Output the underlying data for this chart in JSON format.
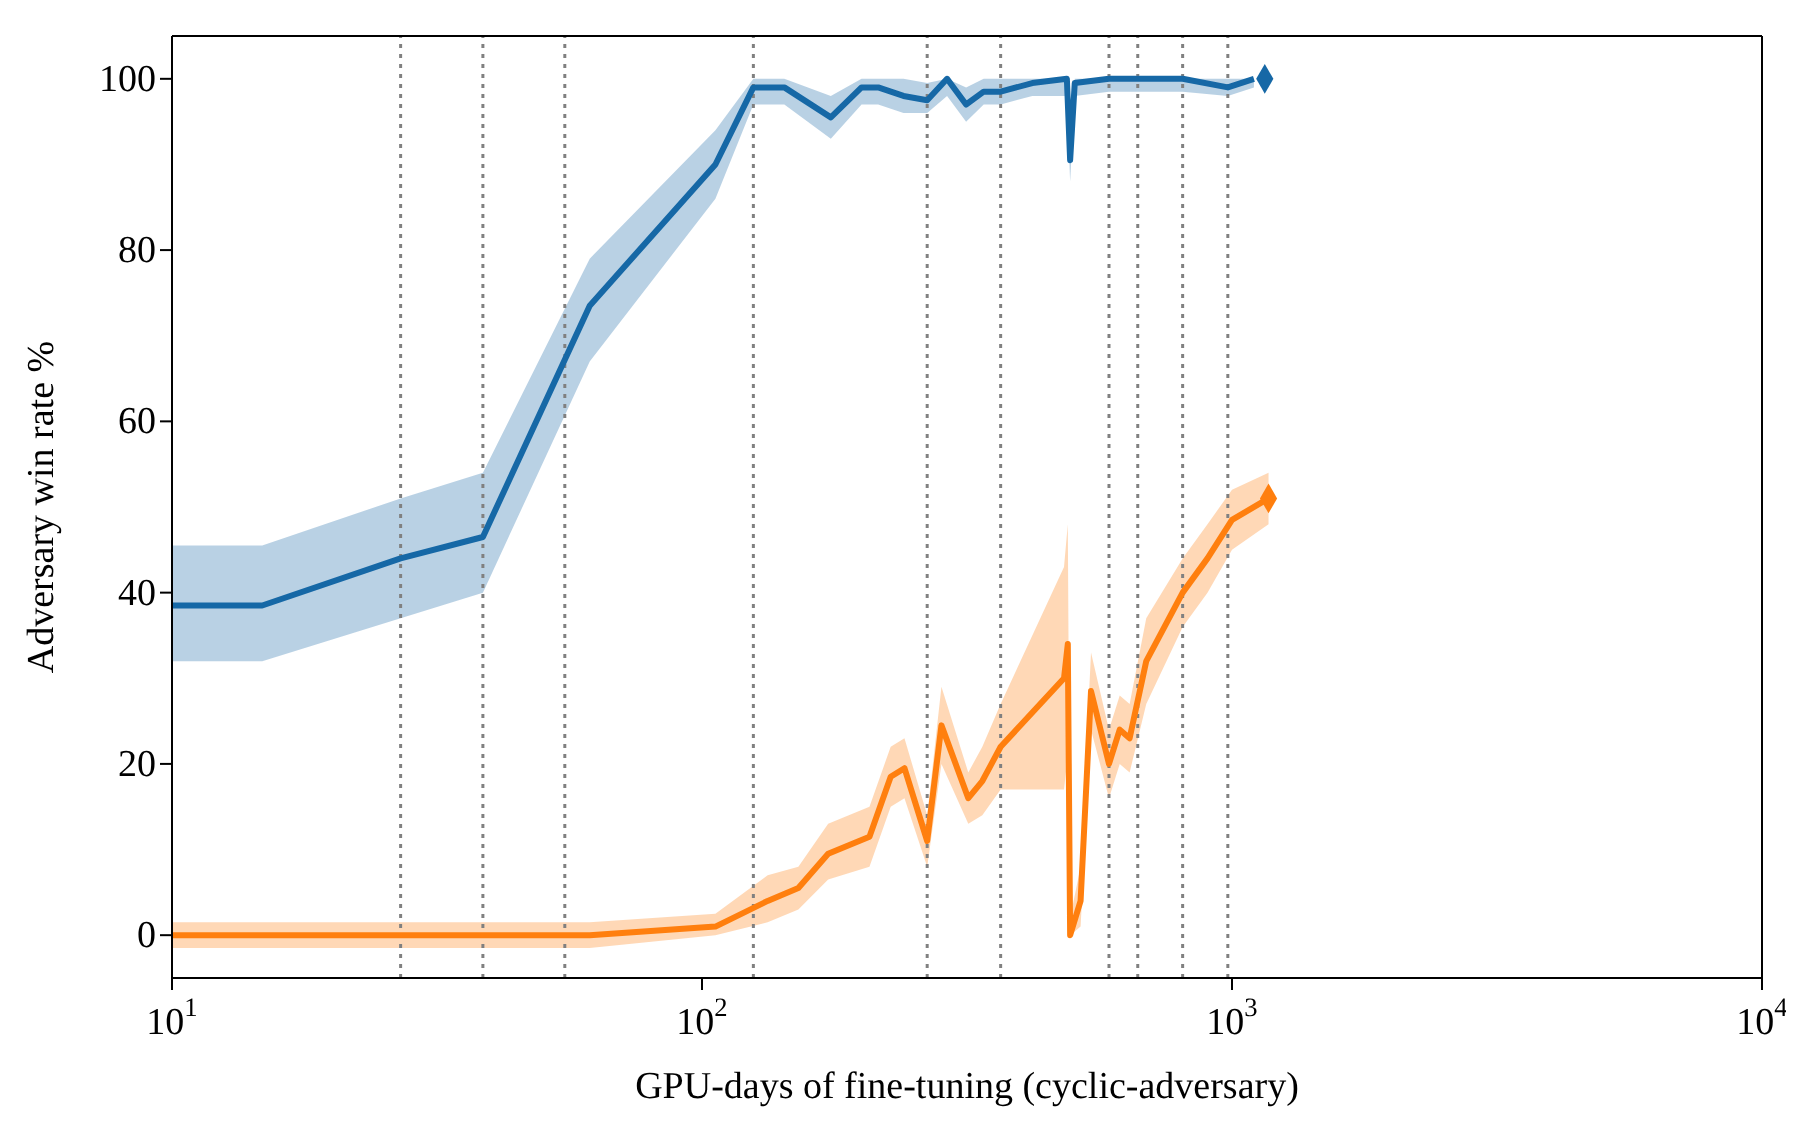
{
  "chart_data": {
    "type": "line",
    "xlabel": "GPU-days of fine-tuning (cyclic-adversary)",
    "ylabel": "Adversary win rate %",
    "log": "x",
    "xlim": [
      10,
      10000
    ],
    "xticks": [
      {
        "value": 10,
        "label": "10$^{1}$"
      },
      {
        "value": 100,
        "label": "10$^{2}$"
      },
      {
        "value": 1000,
        "label": "10$^{3}$"
      },
      {
        "value": 10000,
        "label": "10$^{4}$"
      }
    ],
    "ylim": [
      -5,
      105
    ],
    "yticks": [
      0,
      20,
      40,
      60,
      80,
      100
    ],
    "series": [
      {
        "color": "#1668a6",
        "marker": "none",
        "line_style": "solid",
        "x": [
          10,
          14.8,
          27,
          38.6,
          61.4,
          106,
          125,
          143,
          175,
          200,
          215,
          240,
          266,
          290,
          315,
          340,
          366,
          420,
          488,
          495,
          505,
          586,
          664,
          807,
          982,
          1100
        ],
        "values": [
          38.5,
          38.5,
          44,
          46.5,
          73.5,
          90,
          99,
          99,
          95.5,
          99,
          99,
          98,
          97.5,
          100,
          97,
          98.5,
          98.5,
          99.5,
          100,
          90.5,
          99.5,
          100,
          100,
          100,
          99,
          100
        ],
        "lower": [
          32,
          32,
          37,
          40,
          67,
          86,
          97,
          97,
          93,
          97,
          97,
          96,
          96,
          98,
          95,
          97,
          97,
          98,
          98,
          88,
          98,
          98.5,
          98.5,
          98.5,
          98,
          99
        ],
        "upper": [
          45.5,
          45.5,
          51,
          54,
          79,
          94,
          100,
          100,
          98,
          100,
          100,
          100,
          99.5,
          100,
          99,
          100,
          100,
          100,
          100,
          93,
          100,
          100,
          100,
          100,
          100,
          100
        ]
      },
      {
        "color": "#ff7f0e",
        "marker": "none",
        "line_style": "solid",
        "x": [
          10,
          27,
          38.6,
          61.4,
          106,
          133,
          152,
          173,
          207,
          227,
          241,
          266,
          283,
          318,
          338,
          366,
          482,
          490,
          495,
          518,
          542,
          586,
          614,
          641,
          689,
          807,
          899,
          1000,
          1172
        ],
        "values": [
          0,
          0,
          0,
          0,
          1,
          4,
          5.5,
          9.5,
          11.5,
          18.5,
          19.5,
          11,
          24.5,
          16,
          18,
          22,
          30,
          34,
          0,
          4,
          28.5,
          20,
          24,
          23,
          32,
          40,
          44,
          48.5,
          51
        ],
        "lower": [
          -1.5,
          -1.5,
          -1.5,
          -1.5,
          0,
          1.5,
          3,
          6.5,
          8,
          15,
          16,
          8,
          20,
          13,
          14,
          17,
          17,
          21,
          0,
          1,
          24,
          16,
          20,
          19,
          27,
          36,
          40,
          45,
          48
        ],
        "upper": [
          1.5,
          1.5,
          1.5,
          1.5,
          2.5,
          7,
          8,
          13,
          15,
          22,
          23,
          14,
          29,
          19,
          22,
          27,
          43,
          48,
          2,
          8,
          33,
          24,
          28,
          27,
          37,
          44,
          48,
          52,
          54
        ]
      },
      {
        "type": "scatter",
        "color": "#1668a6",
        "marker": "diamond",
        "x": [
          1153
        ],
        "values": [
          100
        ]
      },
      {
        "type": "scatter",
        "color": "#ff7f0e",
        "marker": "diamond",
        "x": [
          1172
        ],
        "values": [
          51
        ]
      }
    ],
    "ref_lines": [
      {
        "axis": "x",
        "value": 27,
        "color": "#808080",
        "line_style": "dotted"
      },
      {
        "axis": "x",
        "value": 38.6,
        "color": "#808080",
        "line_style": "dotted"
      },
      {
        "axis": "x",
        "value": 55.1,
        "color": "#808080",
        "line_style": "dotted"
      },
      {
        "axis": "x",
        "value": 125,
        "color": "#808080",
        "line_style": "dotted"
      },
      {
        "axis": "x",
        "value": 266,
        "color": "#808080",
        "line_style": "dotted"
      },
      {
        "axis": "x",
        "value": 366,
        "color": "#808080",
        "line_style": "dotted"
      },
      {
        "axis": "x",
        "value": 586,
        "color": "#808080",
        "line_style": "dotted"
      },
      {
        "axis": "x",
        "value": 664,
        "color": "#808080",
        "line_style": "dotted"
      },
      {
        "axis": "x",
        "value": 807,
        "color": "#808080",
        "line_style": "dotted"
      },
      {
        "axis": "x",
        "value": 982,
        "color": "#808080",
        "line_style": "dotted"
      }
    ]
  }
}
